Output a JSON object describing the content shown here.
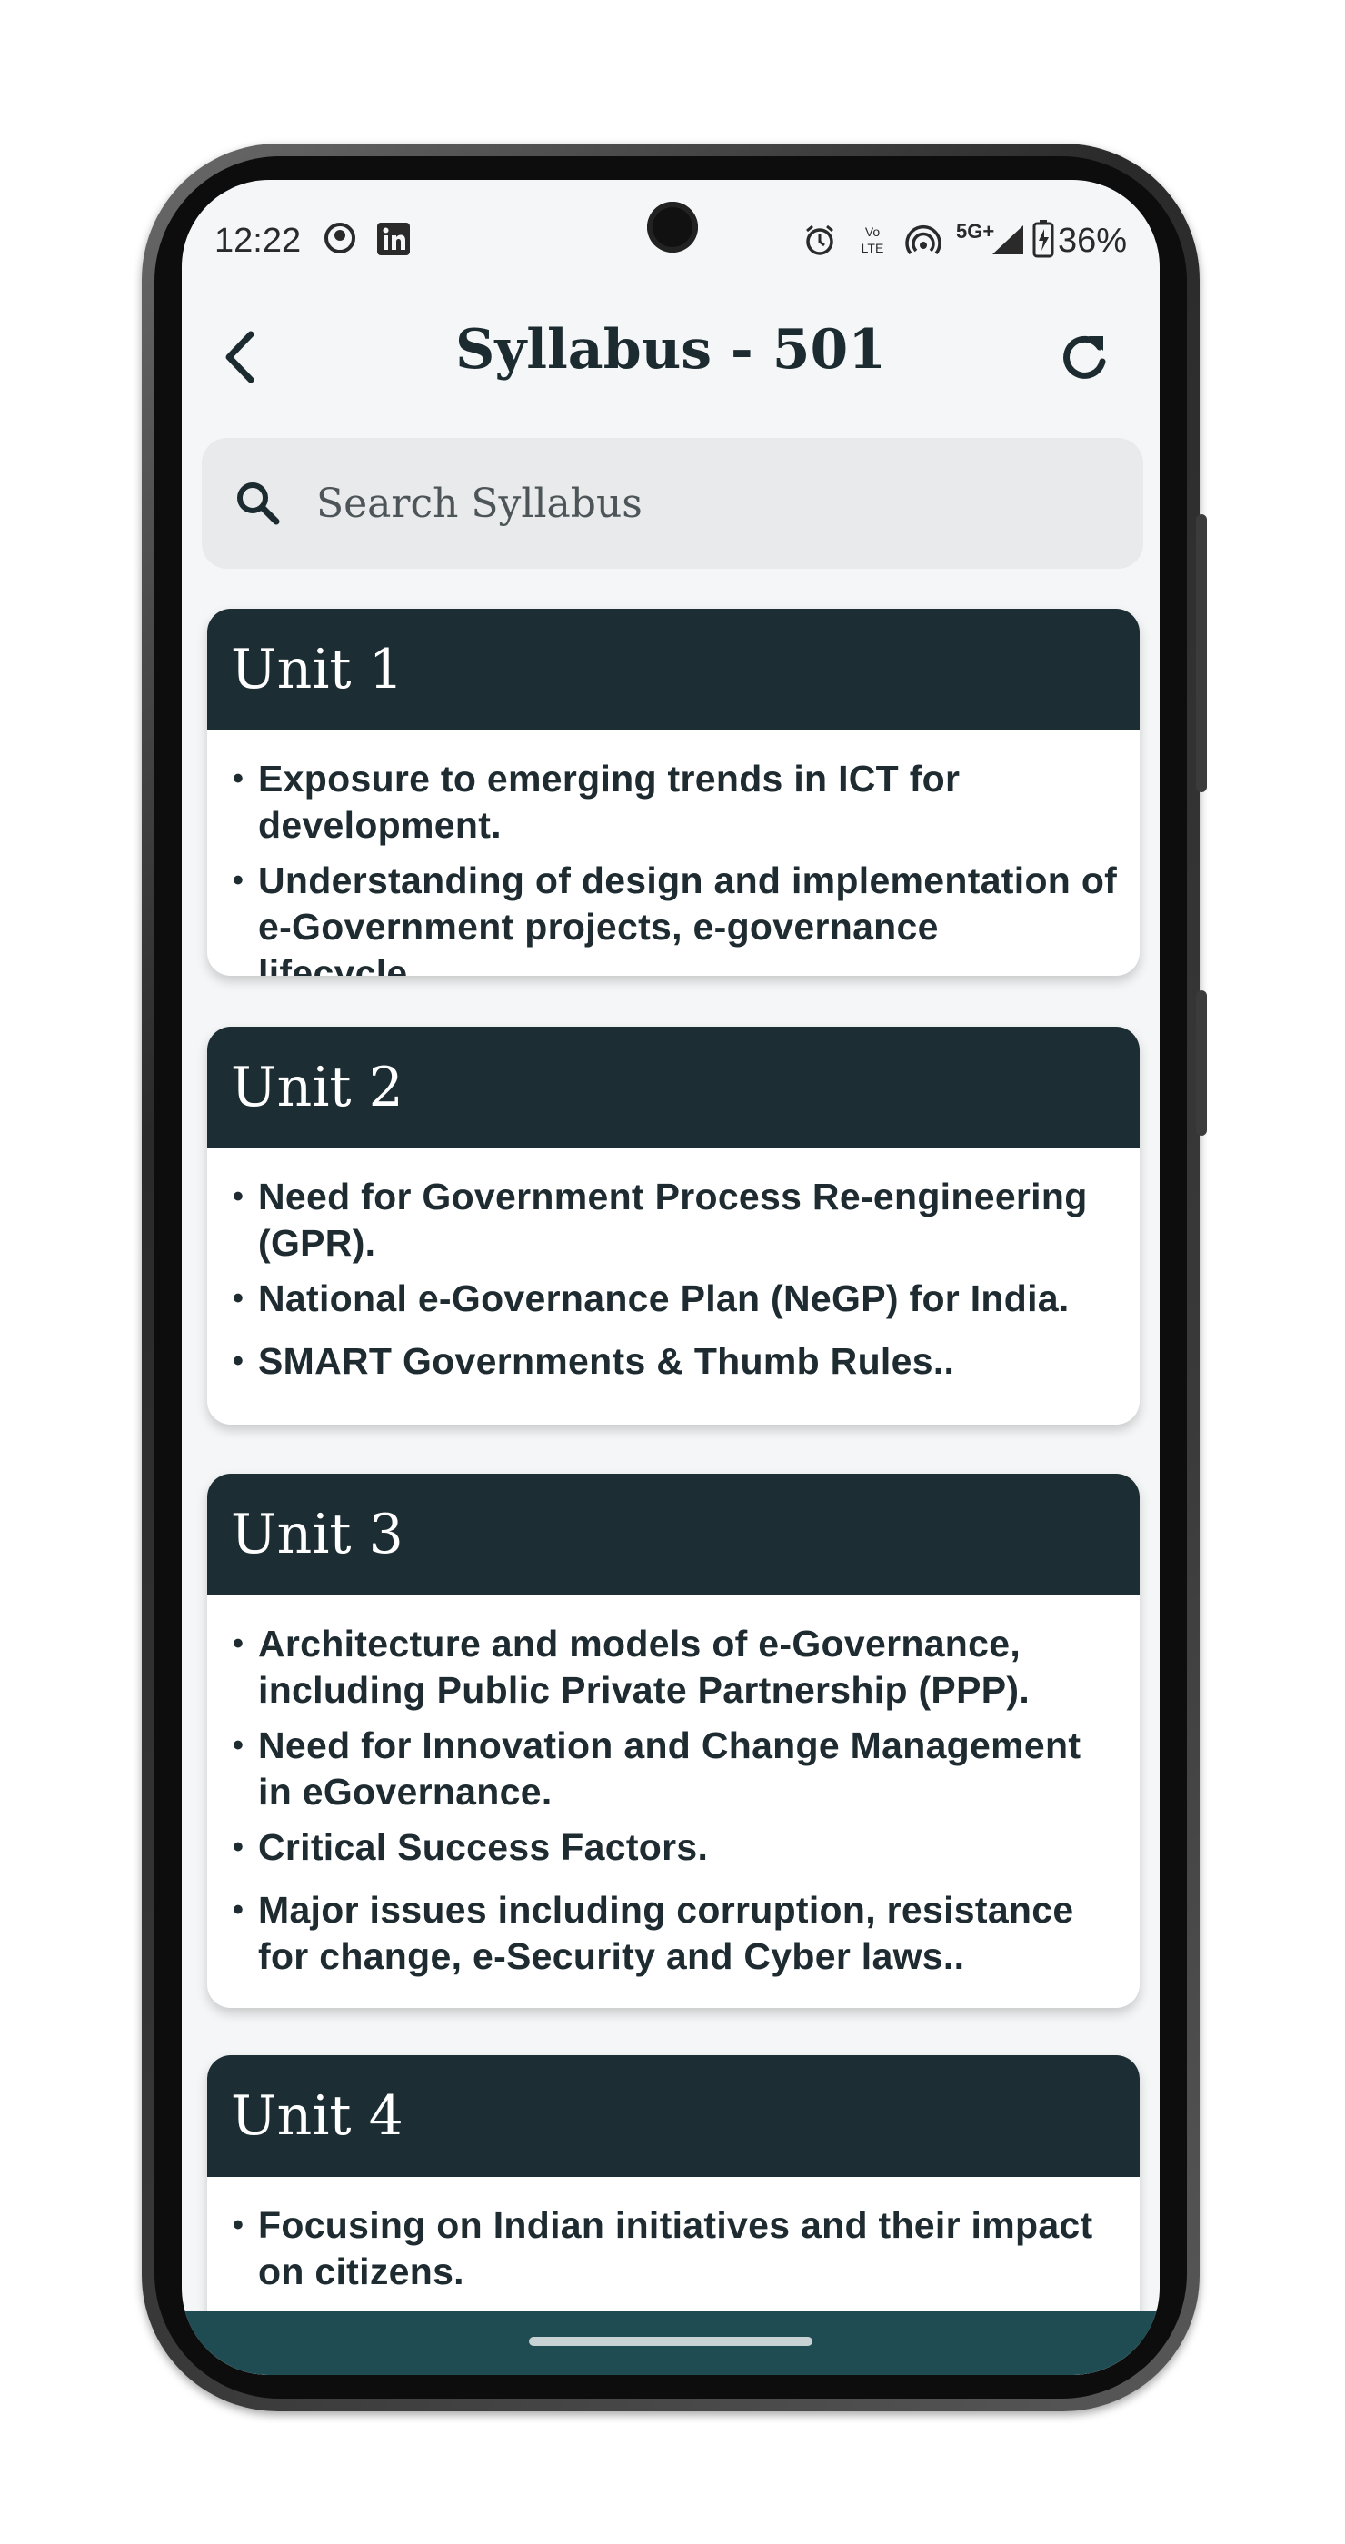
{
  "statusbar": {
    "time": "12:22",
    "battery": "36%",
    "network": "5G+",
    "volte": "Vo LTE"
  },
  "appbar": {
    "title": "Syllabus - 501"
  },
  "search": {
    "placeholder": "Search Syllabus"
  },
  "units": [
    {
      "title": "Unit 1",
      "items": [
        "Exposure to emerging trends in ICT for development.",
        "Understanding of design and implementation of e-Government projects, e-governance lifecycle.."
      ]
    },
    {
      "title": "Unit 2",
      "items": [
        "Need for Government Process Re-engineering (GPR).",
        "National e-Governance Plan (NeGP) for India.",
        "SMART Governments & Thumb Rules.."
      ]
    },
    {
      "title": "Unit 3",
      "items": [
        "Architecture and models of e-Governance, including Public Private Partnership (PPP).",
        "Need for Innovation and Change Management in eGovernance.",
        "Critical Success Factors.",
        "Major issues including corruption, resistance for change, e-Security and Cyber laws.."
      ]
    },
    {
      "title": "Unit 4",
      "items": [
        "Focusing on Indian initiatives and their impact on citizens."
      ]
    }
  ],
  "colors": {
    "header": "#1c2e33",
    "navbar": "#1e4c52",
    "background": "#f4f6f7"
  }
}
